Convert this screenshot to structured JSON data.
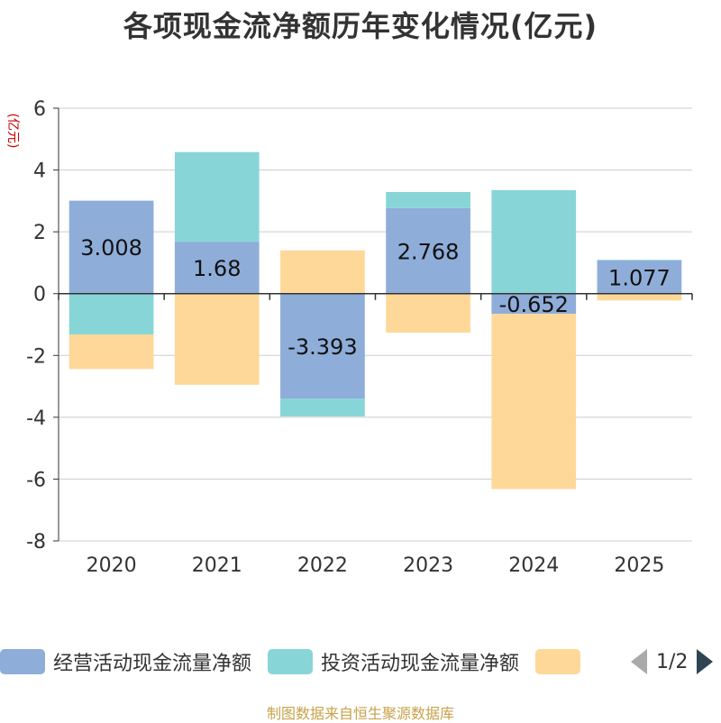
{
  "chart_data": {
    "type": "bar",
    "stacked": true,
    "title": "各项现金流净额历年变化情况(亿元)",
    "ylabel": "(亿元)",
    "categories": [
      "2020",
      "2021",
      "2022",
      "2023",
      "2024",
      "2025"
    ],
    "ylim": [
      -8,
      6
    ],
    "yticks": [
      6,
      4,
      2,
      0,
      -2,
      -4,
      -6,
      -8
    ],
    "grid": true,
    "series": [
      {
        "name": "经营活动现金流量净额",
        "color": "#8fadd9",
        "values": [
          3.008,
          1.68,
          -3.393,
          2.768,
          -0.652,
          1.077
        ],
        "labels": [
          "3.008",
          "1.68",
          "-3.393",
          "2.768",
          "-0.652",
          "1.077"
        ]
      },
      {
        "name": "投资活动现金流量净额",
        "color": "#88d5d8",
        "values": [
          -1.32,
          2.9,
          -0.58,
          0.52,
          3.35,
          0.02
        ]
      },
      {
        "name": "",
        "color": "#fed899",
        "values": [
          -1.12,
          -2.95,
          1.4,
          -1.26,
          -5.67,
          -0.22
        ]
      }
    ],
    "legend_position": "bottom",
    "legend_page": "1/2"
  },
  "source": "制图数据来自恒生聚源数据库"
}
